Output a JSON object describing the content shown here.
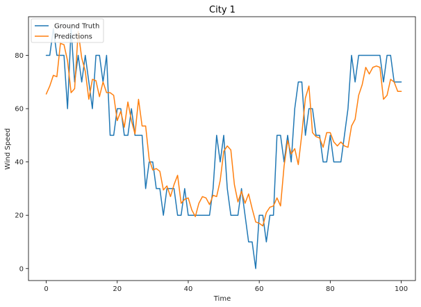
{
  "chart_data": {
    "type": "line",
    "title": "City 1",
    "xlabel": "Time",
    "ylabel": "Wind Speed",
    "xlim": [
      -5,
      104
    ],
    "ylim": [
      -4.5,
      94.5
    ],
    "xticks": [
      0,
      20,
      40,
      60,
      80,
      100
    ],
    "yticks": [
      0,
      20,
      40,
      60,
      80
    ],
    "grid": false,
    "legend_position": "top-left",
    "series": [
      {
        "name": "Ground Truth",
        "color": "#1f77b4",
        "values": [
          80,
          80,
          90,
          80,
          80,
          80,
          60,
          90,
          70,
          80,
          70,
          80,
          70,
          60,
          80,
          80,
          70,
          80,
          50,
          50,
          60,
          60,
          50,
          50,
          60,
          50,
          50,
          50,
          30,
          40,
          40,
          30,
          30,
          20,
          30,
          30,
          30,
          20,
          20,
          30,
          20,
          20,
          20,
          20,
          20,
          20,
          20,
          30,
          50,
          40,
          50,
          30,
          20,
          20,
          20,
          30,
          20,
          10,
          10,
          0,
          20,
          20,
          10,
          20,
          20,
          50,
          50,
          40,
          50,
          40,
          60,
          70,
          70,
          50,
          60,
          60,
          50,
          50,
          40,
          40,
          50,
          40,
          40,
          40,
          50,
          60,
          80,
          70,
          80,
          80,
          80,
          80,
          80,
          80,
          80,
          70,
          80,
          80,
          70,
          70,
          70
        ]
      },
      {
        "name": "Predictions",
        "color": "#ff7f0e",
        "values": [
          65.5,
          68.5,
          72.5,
          72.0,
          84.5,
          84.0,
          78.0,
          66.0,
          67.5,
          89.0,
          79.0,
          74.0,
          63.5,
          71.0,
          70.5,
          64.5,
          70.0,
          66.0,
          66.0,
          65.0,
          55.5,
          59.0,
          53.0,
          62.5,
          55.5,
          50.5,
          63.5,
          53.5,
          53.5,
          41.0,
          37.0,
          37.5,
          36.5,
          29.5,
          31.0,
          27.0,
          31.5,
          35.0,
          24.5,
          26.0,
          26.5,
          22.0,
          19.5,
          24.5,
          27.0,
          26.5,
          24.0,
          27.5,
          27.0,
          33.0,
          44.0,
          46.0,
          44.5,
          31.5,
          25.0,
          29.0,
          24.5,
          28.0,
          22.5,
          17.5,
          17.0,
          16.0,
          21.0,
          23.0,
          23.5,
          26.5,
          23.5,
          38.5,
          48.0,
          43.0,
          45.0,
          39.0,
          50.5,
          64.0,
          68.5,
          51.0,
          49.5,
          49.0,
          45.5,
          51.0,
          51.0,
          47.5,
          46.0,
          47.5,
          46.0,
          45.5,
          53.5,
          56.0,
          65.0,
          69.0,
          75.5,
          73.0,
          75.5,
          76.0,
          75.5,
          63.5,
          65.0,
          71.0,
          70.0,
          66.5,
          66.5
        ]
      }
    ]
  }
}
